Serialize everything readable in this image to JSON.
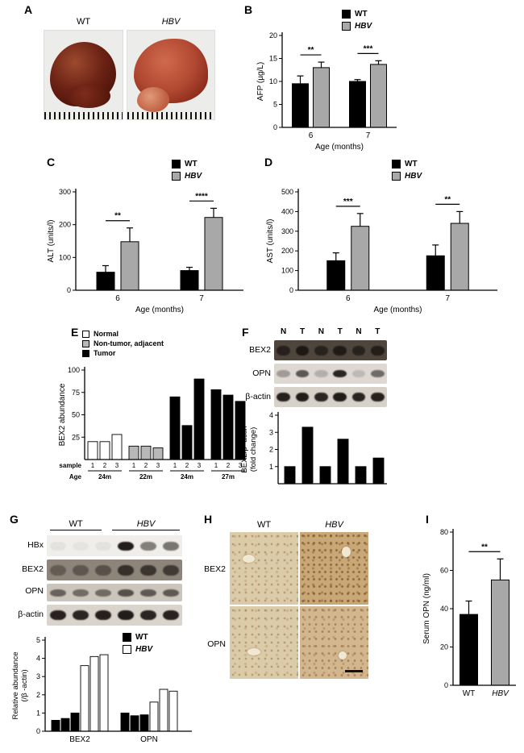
{
  "panel_A": {
    "label": "A",
    "photos": [
      {
        "caption": "WT"
      },
      {
        "caption": "HBV"
      }
    ]
  },
  "panel_B": {
    "label": "B"
  },
  "panel_C": {
    "label": "C"
  },
  "panel_D": {
    "label": "D"
  },
  "panel_E": {
    "label": "E"
  },
  "panel_F": {
    "label": "F",
    "lane_headers": [
      "N",
      "T",
      "N",
      "T",
      "N",
      "T"
    ],
    "blots": [
      {
        "name": "BEX2",
        "bg": "#4e463d",
        "band_height": 12,
        "lanes": [
          0.75,
          0.9,
          0.7,
          0.85,
          0.7,
          0.8
        ]
      },
      {
        "name": "OPN",
        "bg": "#ddd8d1",
        "band_height": 9,
        "lanes": [
          0.3,
          0.65,
          0.2,
          0.9,
          0.15,
          0.55
        ]
      },
      {
        "name": "β-actin",
        "bg": "#d6d1c9",
        "band_height": 11,
        "lanes": [
          0.92,
          0.95,
          0.9,
          0.95,
          0.9,
          0.92
        ]
      }
    ]
  },
  "panel_G": {
    "label": "G",
    "group_headers": [
      "WT",
      "HBV"
    ],
    "blots": [
      {
        "name": "HBx",
        "bg": "#f0eeea",
        "band_height": 11,
        "lanes": [
          0.05,
          0.04,
          0.05,
          0.95,
          0.5,
          0.55
        ]
      },
      {
        "name": "BEX2",
        "bg": "#8d847a",
        "band_height": 13,
        "lanes": [
          0.35,
          0.4,
          0.45,
          0.75,
          0.7,
          0.65
        ]
      },
      {
        "name": "OPN",
        "bg": "#cbc5bc",
        "band_height": 9,
        "lanes": [
          0.55,
          0.5,
          0.5,
          0.65,
          0.6,
          0.6
        ]
      },
      {
        "name": "β-actin",
        "bg": "#d9d4cc",
        "band_height": 12,
        "lanes": [
          0.92,
          0.9,
          0.93,
          0.95,
          0.9,
          0.92
        ]
      }
    ],
    "legend": [
      {
        "label": "WT",
        "color": "#000000"
      },
      {
        "label": "HBV",
        "color": "#ffffff"
      }
    ]
  },
  "panel_H": {
    "label": "H",
    "column_headers": [
      "WT",
      "HBV"
    ],
    "row_labels": [
      "BEX2",
      "OPN"
    ]
  },
  "panel_I": {
    "label": "I"
  },
  "chart_data": [
    {
      "id": "B",
      "type": "bar",
      "ylabel": "AFP (µg/L)",
      "xlabel": "Age (months)",
      "ylim": [
        0,
        20
      ],
      "yticks": [
        0,
        5,
        10,
        15,
        20
      ],
      "categories": [
        "6",
        "7"
      ],
      "series": [
        {
          "name": "WT",
          "color": "#000000",
          "values": [
            9.5,
            10.0
          ],
          "errors": [
            1.7,
            0.4
          ]
        },
        {
          "name": "HBV",
          "color": "#a8a8a8",
          "values": [
            13.0,
            13.7
          ],
          "errors": [
            1.2,
            0.8
          ]
        }
      ],
      "significance": [
        {
          "bars": [
            0,
            1
          ],
          "label": "**"
        },
        {
          "bars": [
            2,
            3
          ],
          "label": "***"
        }
      ],
      "legend_position": "top-right"
    },
    {
      "id": "C",
      "type": "bar",
      "ylabel": "ALT (units/l)",
      "xlabel": "Age (months)",
      "ylim": [
        0,
        300
      ],
      "yticks": [
        0,
        100,
        200,
        300
      ],
      "categories": [
        "6",
        "7"
      ],
      "series": [
        {
          "name": "WT",
          "color": "#000000",
          "values": [
            55,
            60
          ],
          "errors": [
            20,
            10
          ]
        },
        {
          "name": "HBV",
          "color": "#a8a8a8",
          "values": [
            148,
            222
          ],
          "errors": [
            42,
            28
          ]
        }
      ],
      "significance": [
        {
          "bars": [
            0,
            1
          ],
          "label": "**"
        },
        {
          "bars": [
            2,
            3
          ],
          "label": "****"
        }
      ],
      "legend_position": "top-right"
    },
    {
      "id": "D",
      "type": "bar",
      "ylabel": "AST (units/l)",
      "xlabel": "Age (months)",
      "ylim": [
        0,
        500
      ],
      "yticks": [
        0,
        100,
        200,
        300,
        400,
        500
      ],
      "categories": [
        "6",
        "7"
      ],
      "series": [
        {
          "name": "WT",
          "color": "#000000",
          "values": [
            150,
            175
          ],
          "errors": [
            40,
            55
          ]
        },
        {
          "name": "HBV",
          "color": "#a8a8a8",
          "values": [
            325,
            340
          ],
          "errors": [
            65,
            60
          ]
        }
      ],
      "significance": [
        {
          "bars": [
            0,
            1
          ],
          "label": "***"
        },
        {
          "bars": [
            2,
            3
          ],
          "label": "**"
        }
      ],
      "legend_position": "top-right"
    },
    {
      "id": "E",
      "type": "bar",
      "ylabel": "BEX2 abundance",
      "ylim": [
        0,
        100
      ],
      "yticks": [
        25,
        50,
        75,
        100
      ],
      "group_label_style": "bracket",
      "row_labels": [
        "sample",
        "Age"
      ],
      "groups": [
        {
          "label": "24m",
          "count": 3
        },
        {
          "label": "22m",
          "count": 3
        },
        {
          "label": "24m",
          "count": 3
        },
        {
          "label": "27m",
          "count": 3
        }
      ],
      "bars": [
        {
          "sample": "1",
          "value": 20,
          "color": "#ffffff",
          "category": "Normal"
        },
        {
          "sample": "2",
          "value": 20,
          "color": "#ffffff",
          "category": "Normal"
        },
        {
          "sample": "3",
          "value": 28,
          "color": "#ffffff",
          "category": "Normal"
        },
        {
          "sample": "1",
          "value": 15,
          "color": "#b8b8b8",
          "category": "Non-tumor, adjacent"
        },
        {
          "sample": "2",
          "value": 15,
          "color": "#b8b8b8",
          "category": "Non-tumor, adjacent"
        },
        {
          "sample": "3",
          "value": 13,
          "color": "#b8b8b8",
          "category": "Non-tumor, adjacent"
        },
        {
          "sample": "1",
          "value": 70,
          "color": "#000000",
          "category": "Tumor"
        },
        {
          "sample": "2",
          "value": 38,
          "color": "#000000",
          "category": "Tumor"
        },
        {
          "sample": "3",
          "value": 90,
          "color": "#000000",
          "category": "Tumor"
        },
        {
          "sample": "1",
          "value": 78,
          "color": "#000000",
          "category": "Tumor"
        },
        {
          "sample": "2",
          "value": 72,
          "color": "#000000",
          "category": "Tumor"
        },
        {
          "sample": "3",
          "value": 65,
          "color": "#000000",
          "category": "Tumor"
        }
      ],
      "legend_items": [
        {
          "label": "Normal",
          "color": "#ffffff"
        },
        {
          "label": "Non-tumor, adjacent",
          "color": "#b8b8b8"
        },
        {
          "label": "Tumor",
          "color": "#000000"
        }
      ]
    },
    {
      "id": "F",
      "type": "bar",
      "ylabel_lines": [
        "BEX2/β -actin",
        "(fold change)"
      ],
      "ylim": [
        0,
        4
      ],
      "yticks": [
        1,
        2,
        3,
        4
      ],
      "bars": [
        {
          "value": 1.0,
          "color": "#000000",
          "lane": "N"
        },
        {
          "value": 3.3,
          "color": "#000000",
          "lane": "T"
        },
        {
          "value": 1.0,
          "color": "#000000",
          "lane": "N"
        },
        {
          "value": 2.6,
          "color": "#000000",
          "lane": "T"
        },
        {
          "value": 1.0,
          "color": "#000000",
          "lane": "N"
        },
        {
          "value": 1.5,
          "color": "#000000",
          "lane": "T"
        }
      ]
    },
    {
      "id": "G",
      "type": "bar",
      "ylabel_lines": [
        "Relative abundance",
        "(/β -actin)"
      ],
      "ylim": [
        0,
        5
      ],
      "yticks": [
        0,
        1,
        2,
        3,
        4,
        5
      ],
      "groups": [
        {
          "label": "BEX2",
          "count": 6
        },
        {
          "label": "OPN",
          "count": 6
        }
      ],
      "bars": [
        {
          "value": 0.6,
          "color": "#000000",
          "series": "WT"
        },
        {
          "value": 0.7,
          "color": "#000000",
          "series": "WT"
        },
        {
          "value": 1.0,
          "color": "#000000",
          "series": "WT"
        },
        {
          "value": 3.6,
          "color": "#ffffff",
          "series": "HBV"
        },
        {
          "value": 4.1,
          "color": "#ffffff",
          "series": "HBV"
        },
        {
          "value": 4.2,
          "color": "#ffffff",
          "series": "HBV"
        },
        {
          "value": 1.0,
          "color": "#000000",
          "series": "WT"
        },
        {
          "value": 0.85,
          "color": "#000000",
          "series": "WT"
        },
        {
          "value": 0.9,
          "color": "#000000",
          "series": "WT"
        },
        {
          "value": 1.6,
          "color": "#ffffff",
          "series": "HBV"
        },
        {
          "value": 2.3,
          "color": "#ffffff",
          "series": "HBV"
        },
        {
          "value": 2.2,
          "color": "#ffffff",
          "series": "HBV"
        }
      ]
    },
    {
      "id": "I",
      "type": "bar",
      "ylabel": "Serum OPN (ng/ml)",
      "ylim": [
        0,
        80
      ],
      "yticks": [
        0,
        20,
        40,
        60,
        80
      ],
      "categories": [
        "WT",
        "HBV"
      ],
      "categories_style": [
        "normal",
        "italic"
      ],
      "series": [
        {
          "name": "Serum OPN",
          "colors": [
            "#000000",
            "#a8a8a8"
          ],
          "values": [
            37,
            55
          ],
          "errors": [
            7,
            11
          ]
        }
      ],
      "significance": [
        {
          "bars": [
            0,
            1
          ],
          "label": "**"
        }
      ]
    }
  ]
}
